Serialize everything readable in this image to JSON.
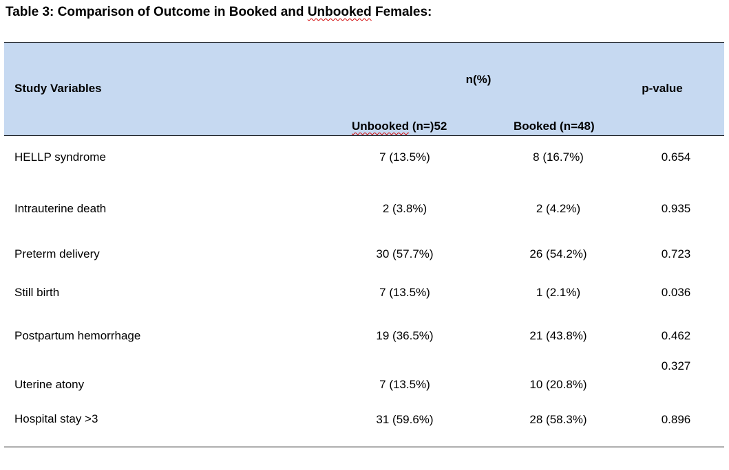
{
  "title": {
    "before": "Table 3: Comparison of Outcome in Booked and ",
    "flagged": "Unbooked",
    "after": " Females:"
  },
  "header": {
    "study_variables": "Study Variables",
    "group_label": "n(%)",
    "p_value": "p-value",
    "unbooked_flagged": "Unbooked",
    "unbooked_rest": " (n=)52",
    "booked": "Booked (n=48)"
  },
  "rows": [
    {
      "variable": "HELLP syndrome",
      "unbooked": "7 (13.5%)",
      "booked": "8 (16.7%)",
      "p": "0.654"
    },
    {
      "variable": "Intrauterine death",
      "unbooked": "2 (3.8%)",
      "booked": "2 (4.2%)",
      "p": "0.935"
    },
    {
      "variable": "Preterm delivery",
      "unbooked": "30 (57.7%)",
      "booked": "26 (54.2%)",
      "p": "0.723"
    },
    {
      "variable": "Still birth",
      "unbooked": "7 (13.5%)",
      "booked": "1 (2.1%)",
      "p": "0.036"
    },
    {
      "variable": "Postpartum hemorrhage",
      "unbooked": "19 (36.5%)",
      "booked": "21 (43.8%)",
      "p": "0.462"
    },
    {
      "variable": "Uterine atony",
      "unbooked": "7 (13.5%)",
      "booked": "10 (20.8%)",
      "p": "0.327"
    },
    {
      "variable": "Hospital stay >3",
      "unbooked": "31 (59.6%)",
      "booked": "28 (58.3%)",
      "p": "0.896"
    }
  ]
}
